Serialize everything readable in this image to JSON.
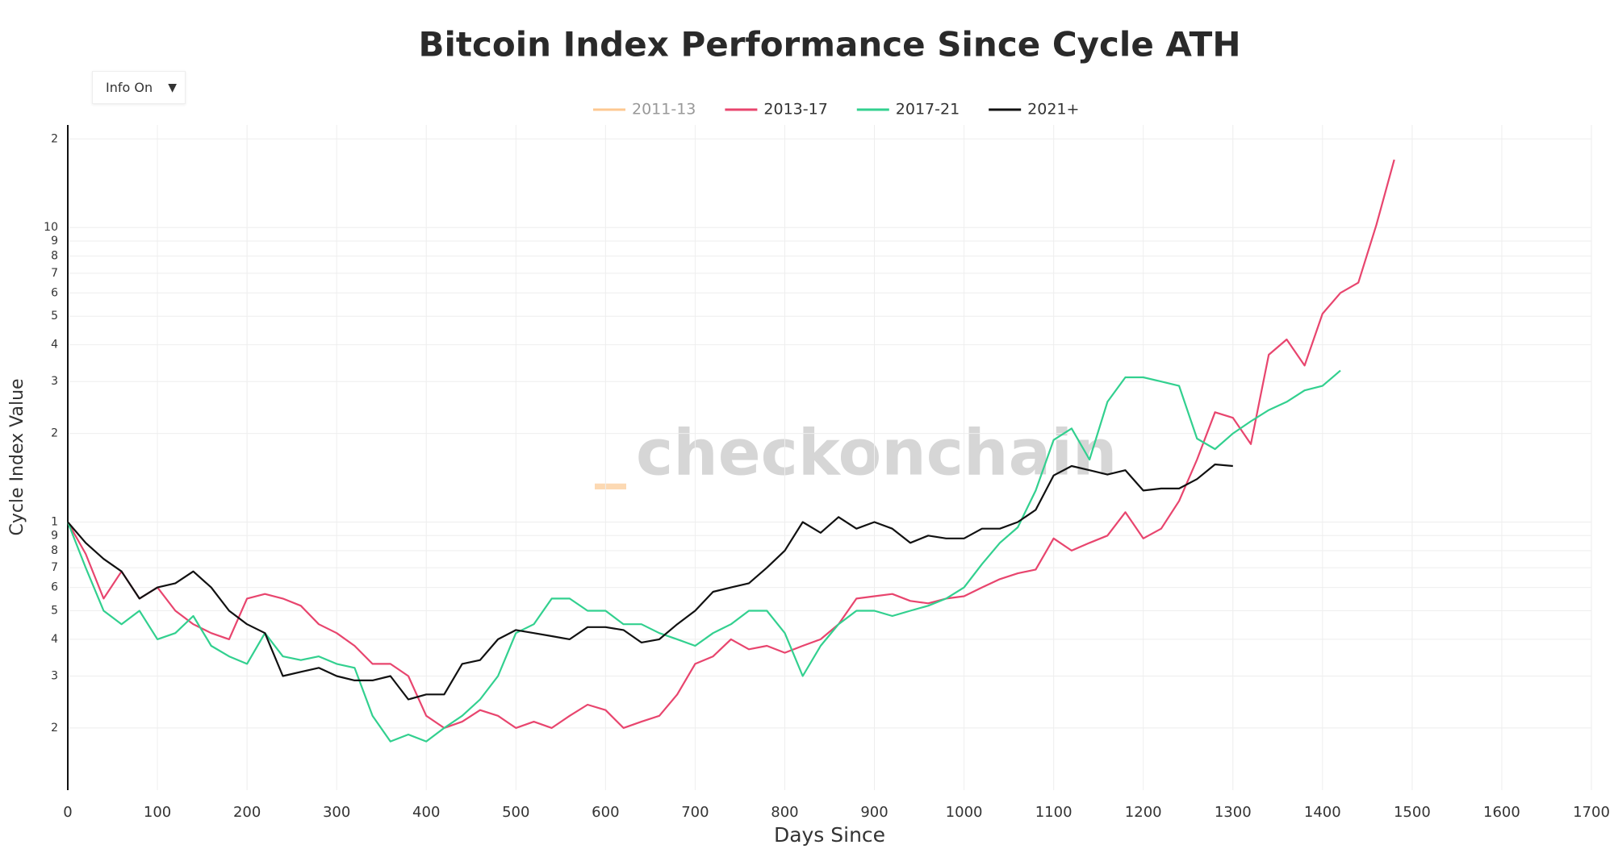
{
  "chart_data": {
    "type": "line",
    "title": "Bitcoin Index Performance Since Cycle ATH",
    "menu": "Info On",
    "watermark": {
      "prefix": "_",
      "text": "checkonchain"
    },
    "xlabel": "Days Since",
    "ylabel": "Cycle Index Value",
    "log_y": true,
    "grid": true,
    "legend": "top",
    "xlim": [
      0,
      1700
    ],
    "xticks": [
      0,
      100,
      200,
      300,
      400,
      500,
      600,
      700,
      800,
      900,
      1000,
      1100,
      1200,
      1300,
      1400,
      1500,
      1600,
      1700
    ],
    "ylim": [
      0.123,
      22.3
    ],
    "yticks": [
      {
        "value": 0.2,
        "label": "2"
      },
      {
        "value": 0.3,
        "label": "3"
      },
      {
        "value": 0.4,
        "label": "4"
      },
      {
        "value": 0.5,
        "label": "5"
      },
      {
        "value": 0.6,
        "label": "6"
      },
      {
        "value": 0.7,
        "label": "7"
      },
      {
        "value": 0.8,
        "label": "8"
      },
      {
        "value": 0.9,
        "label": "9"
      },
      1,
      2,
      3,
      4,
      5,
      6,
      7,
      8,
      9,
      10,
      {
        "value": 20,
        "label": "2"
      }
    ],
    "x": [
      0,
      20,
      40,
      60,
      80,
      100,
      120,
      140,
      160,
      180,
      200,
      220,
      240,
      260,
      280,
      300,
      320,
      340,
      360,
      380,
      400,
      420,
      440,
      460,
      480,
      500,
      520,
      540,
      560,
      580,
      600,
      620,
      640,
      660,
      680,
      700,
      720,
      740,
      760,
      780,
      800,
      820,
      840,
      860,
      880,
      900,
      920,
      940,
      960,
      980,
      1000,
      1020,
      1040,
      1060,
      1080,
      1100,
      1120,
      1140,
      1160,
      1180,
      1200,
      1220,
      1240,
      1260,
      1280,
      1300,
      1320,
      1340,
      1360,
      1380,
      1400,
      1420,
      1440,
      1460,
      1480
    ],
    "series": [
      {
        "name": "2011-13",
        "color": "#fdc891",
        "visible": false,
        "values": [
          null,
          null,
          null,
          null,
          null,
          null,
          null,
          null,
          null,
          null,
          null,
          null,
          null,
          null,
          null,
          null,
          null,
          null,
          null,
          null,
          null,
          null,
          null,
          null,
          null,
          null,
          null,
          null,
          null,
          null,
          null,
          null,
          null,
          null,
          null,
          null,
          null,
          null,
          null,
          null,
          null,
          null,
          null,
          null,
          null,
          null,
          null,
          null,
          null,
          null,
          null,
          null,
          null,
          null,
          null,
          null,
          null,
          null,
          null,
          null,
          null,
          null,
          null,
          null,
          null,
          null,
          null,
          null,
          null,
          null,
          null,
          null,
          null,
          null,
          null
        ]
      },
      {
        "name": "2013-17",
        "color": "#e8456e",
        "visible": true,
        "values": [
          1.0,
          0.78,
          0.55,
          0.68,
          0.55,
          0.6,
          0.5,
          0.45,
          0.42,
          0.4,
          0.55,
          0.57,
          0.55,
          0.52,
          0.45,
          0.42,
          0.38,
          0.33,
          0.33,
          0.3,
          0.22,
          0.2,
          0.21,
          0.23,
          0.22,
          0.2,
          0.21,
          0.2,
          0.22,
          0.24,
          0.23,
          0.2,
          0.21,
          0.22,
          0.26,
          0.33,
          0.35,
          0.4,
          0.37,
          0.38,
          0.36,
          0.38,
          0.4,
          0.45,
          0.55,
          0.56,
          0.57,
          0.54,
          0.53,
          0.55,
          0.56,
          0.6,
          0.64,
          0.67,
          0.69,
          0.88,
          0.8,
          0.85,
          0.9,
          1.08,
          0.88,
          0.95,
          1.18,
          1.63,
          2.36,
          2.26,
          1.84,
          3.7,
          4.17,
          3.4,
          5.1,
          6.0,
          6.5,
          10.2,
          17.0
        ]
      },
      {
        "name": "2017-21",
        "color": "#32d08f",
        "visible": true,
        "values": [
          1.0,
          0.7,
          0.5,
          0.45,
          0.5,
          0.4,
          0.42,
          0.48,
          0.38,
          0.35,
          0.33,
          0.42,
          0.35,
          0.34,
          0.35,
          0.33,
          0.32,
          0.22,
          0.18,
          0.19,
          0.18,
          0.2,
          0.22,
          0.25,
          0.3,
          0.42,
          0.45,
          0.55,
          0.55,
          0.5,
          0.5,
          0.45,
          0.45,
          0.42,
          0.4,
          0.38,
          0.42,
          0.45,
          0.5,
          0.5,
          0.42,
          0.3,
          0.38,
          0.45,
          0.5,
          0.5,
          0.48,
          0.5,
          0.52,
          0.55,
          0.6,
          0.72,
          0.85,
          0.96,
          1.28,
          1.9,
          2.08,
          1.63,
          2.56,
          3.1,
          3.1,
          3.0,
          2.9,
          1.92,
          1.77,
          2.0,
          2.2,
          2.4,
          2.56,
          2.8,
          2.9,
          3.27,
          null,
          null,
          null
        ]
      },
      {
        "name": "2021+",
        "color": "#111111",
        "visible": true,
        "values": [
          1.0,
          0.85,
          0.75,
          0.68,
          0.55,
          0.6,
          0.62,
          0.68,
          0.6,
          0.5,
          0.45,
          0.42,
          0.3,
          0.31,
          0.32,
          0.3,
          0.29,
          0.29,
          0.3,
          0.25,
          0.26,
          0.26,
          0.33,
          0.34,
          0.4,
          0.43,
          0.42,
          0.41,
          0.4,
          0.44,
          0.44,
          0.43,
          0.39,
          0.4,
          0.45,
          0.5,
          0.58,
          0.6,
          0.62,
          0.7,
          0.8,
          1.0,
          0.92,
          1.04,
          0.95,
          1.0,
          0.95,
          0.85,
          0.9,
          0.88,
          0.88,
          0.95,
          0.95,
          1.0,
          1.1,
          1.44,
          1.55,
          1.5,
          1.45,
          1.5,
          1.28,
          1.3,
          1.3,
          1.4,
          1.57,
          1.55,
          null,
          null,
          null,
          null,
          null,
          null,
          null,
          null,
          null
        ]
      }
    ]
  }
}
